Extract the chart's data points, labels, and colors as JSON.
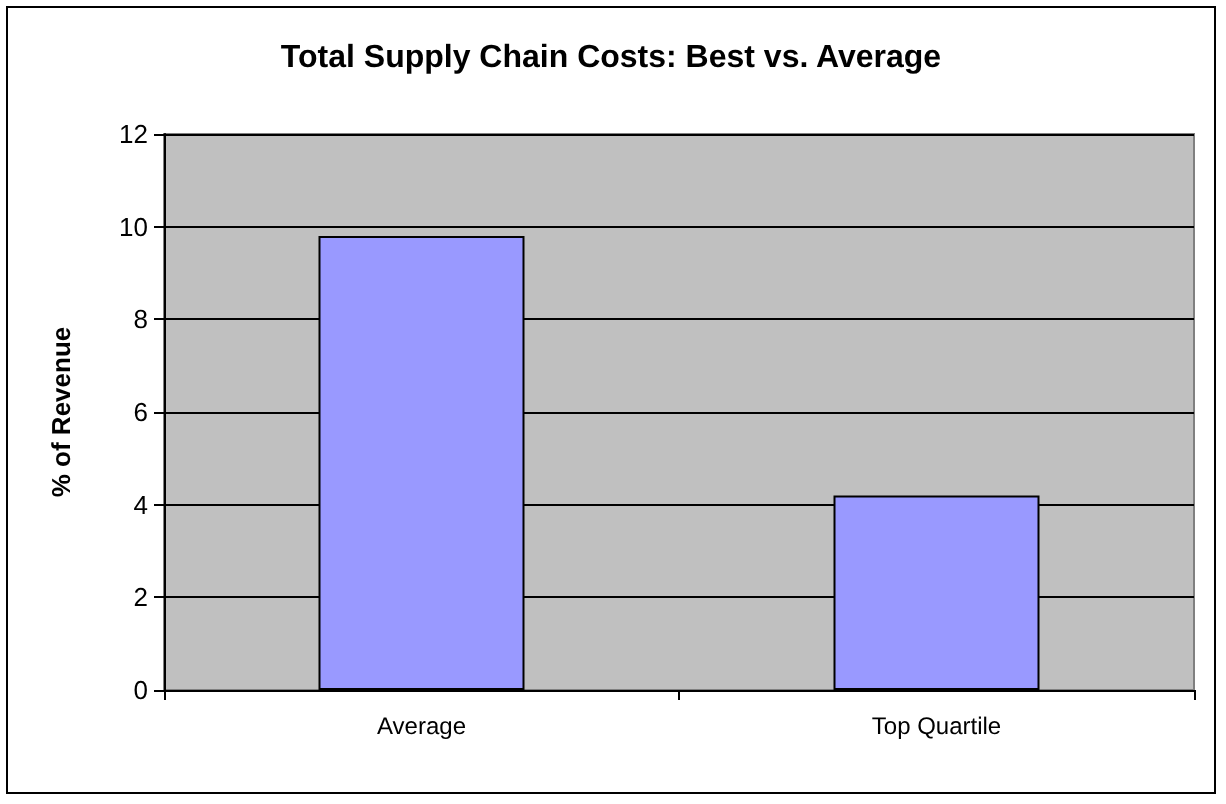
{
  "chart_data": {
    "type": "bar",
    "title": "Total Supply Chain Costs: Best vs. Average",
    "ylabel": "% of Revenue",
    "categories": [
      "Average",
      "Top Quartile"
    ],
    "values": [
      9.8,
      4.2
    ],
    "color": "#9999ff",
    "ylim": [
      0,
      12
    ],
    "yticks": [
      0,
      2,
      4,
      6,
      8,
      10,
      12
    ],
    "grid": "y"
  }
}
